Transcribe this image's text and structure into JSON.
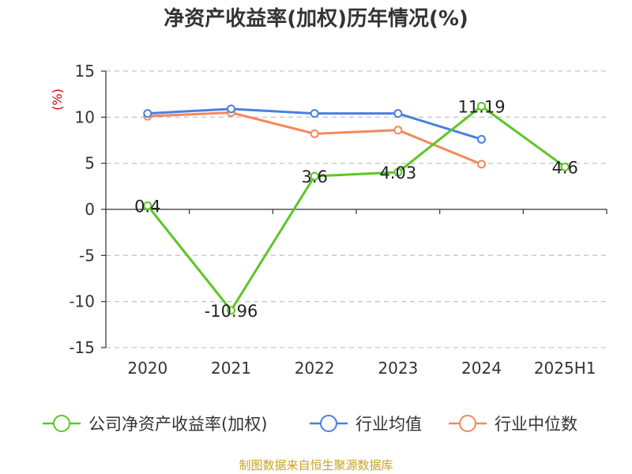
{
  "chart_data": {
    "type": "line",
    "title": "净资产收益率(加权)历年情况(%)",
    "unit_label": "(%)",
    "categories": [
      "2020",
      "2021",
      "2022",
      "2023",
      "2024",
      "2025H1"
    ],
    "ylim": [
      -15,
      15
    ],
    "yticks": [
      15,
      10,
      5,
      0,
      -5,
      -10,
      -15
    ],
    "ytick_labels": [
      "15",
      "10",
      "5",
      "0",
      "-5",
      "-10",
      "-15"
    ],
    "grid": true,
    "legend_position": "bottom",
    "series": [
      {
        "name": "公司净资产收益率(加权)",
        "color": "#5cc625",
        "values": [
          0.4,
          -10.96,
          3.6,
          4.03,
          11.19,
          4.6
        ],
        "labels": [
          "0.4",
          "-10.96",
          "3.6",
          "4.03",
          "11.19",
          "4.6"
        ]
      },
      {
        "name": "行业均值",
        "color": "#4a7fe0",
        "values": [
          10.4,
          10.9,
          10.4,
          10.4,
          7.6,
          null
        ]
      },
      {
        "name": "行业中位数",
        "color": "#f5885b",
        "values": [
          10.1,
          10.5,
          8.2,
          8.6,
          4.9,
          null
        ]
      }
    ]
  },
  "footer": {
    "source": "制图数据来自恒生聚源数据库"
  }
}
